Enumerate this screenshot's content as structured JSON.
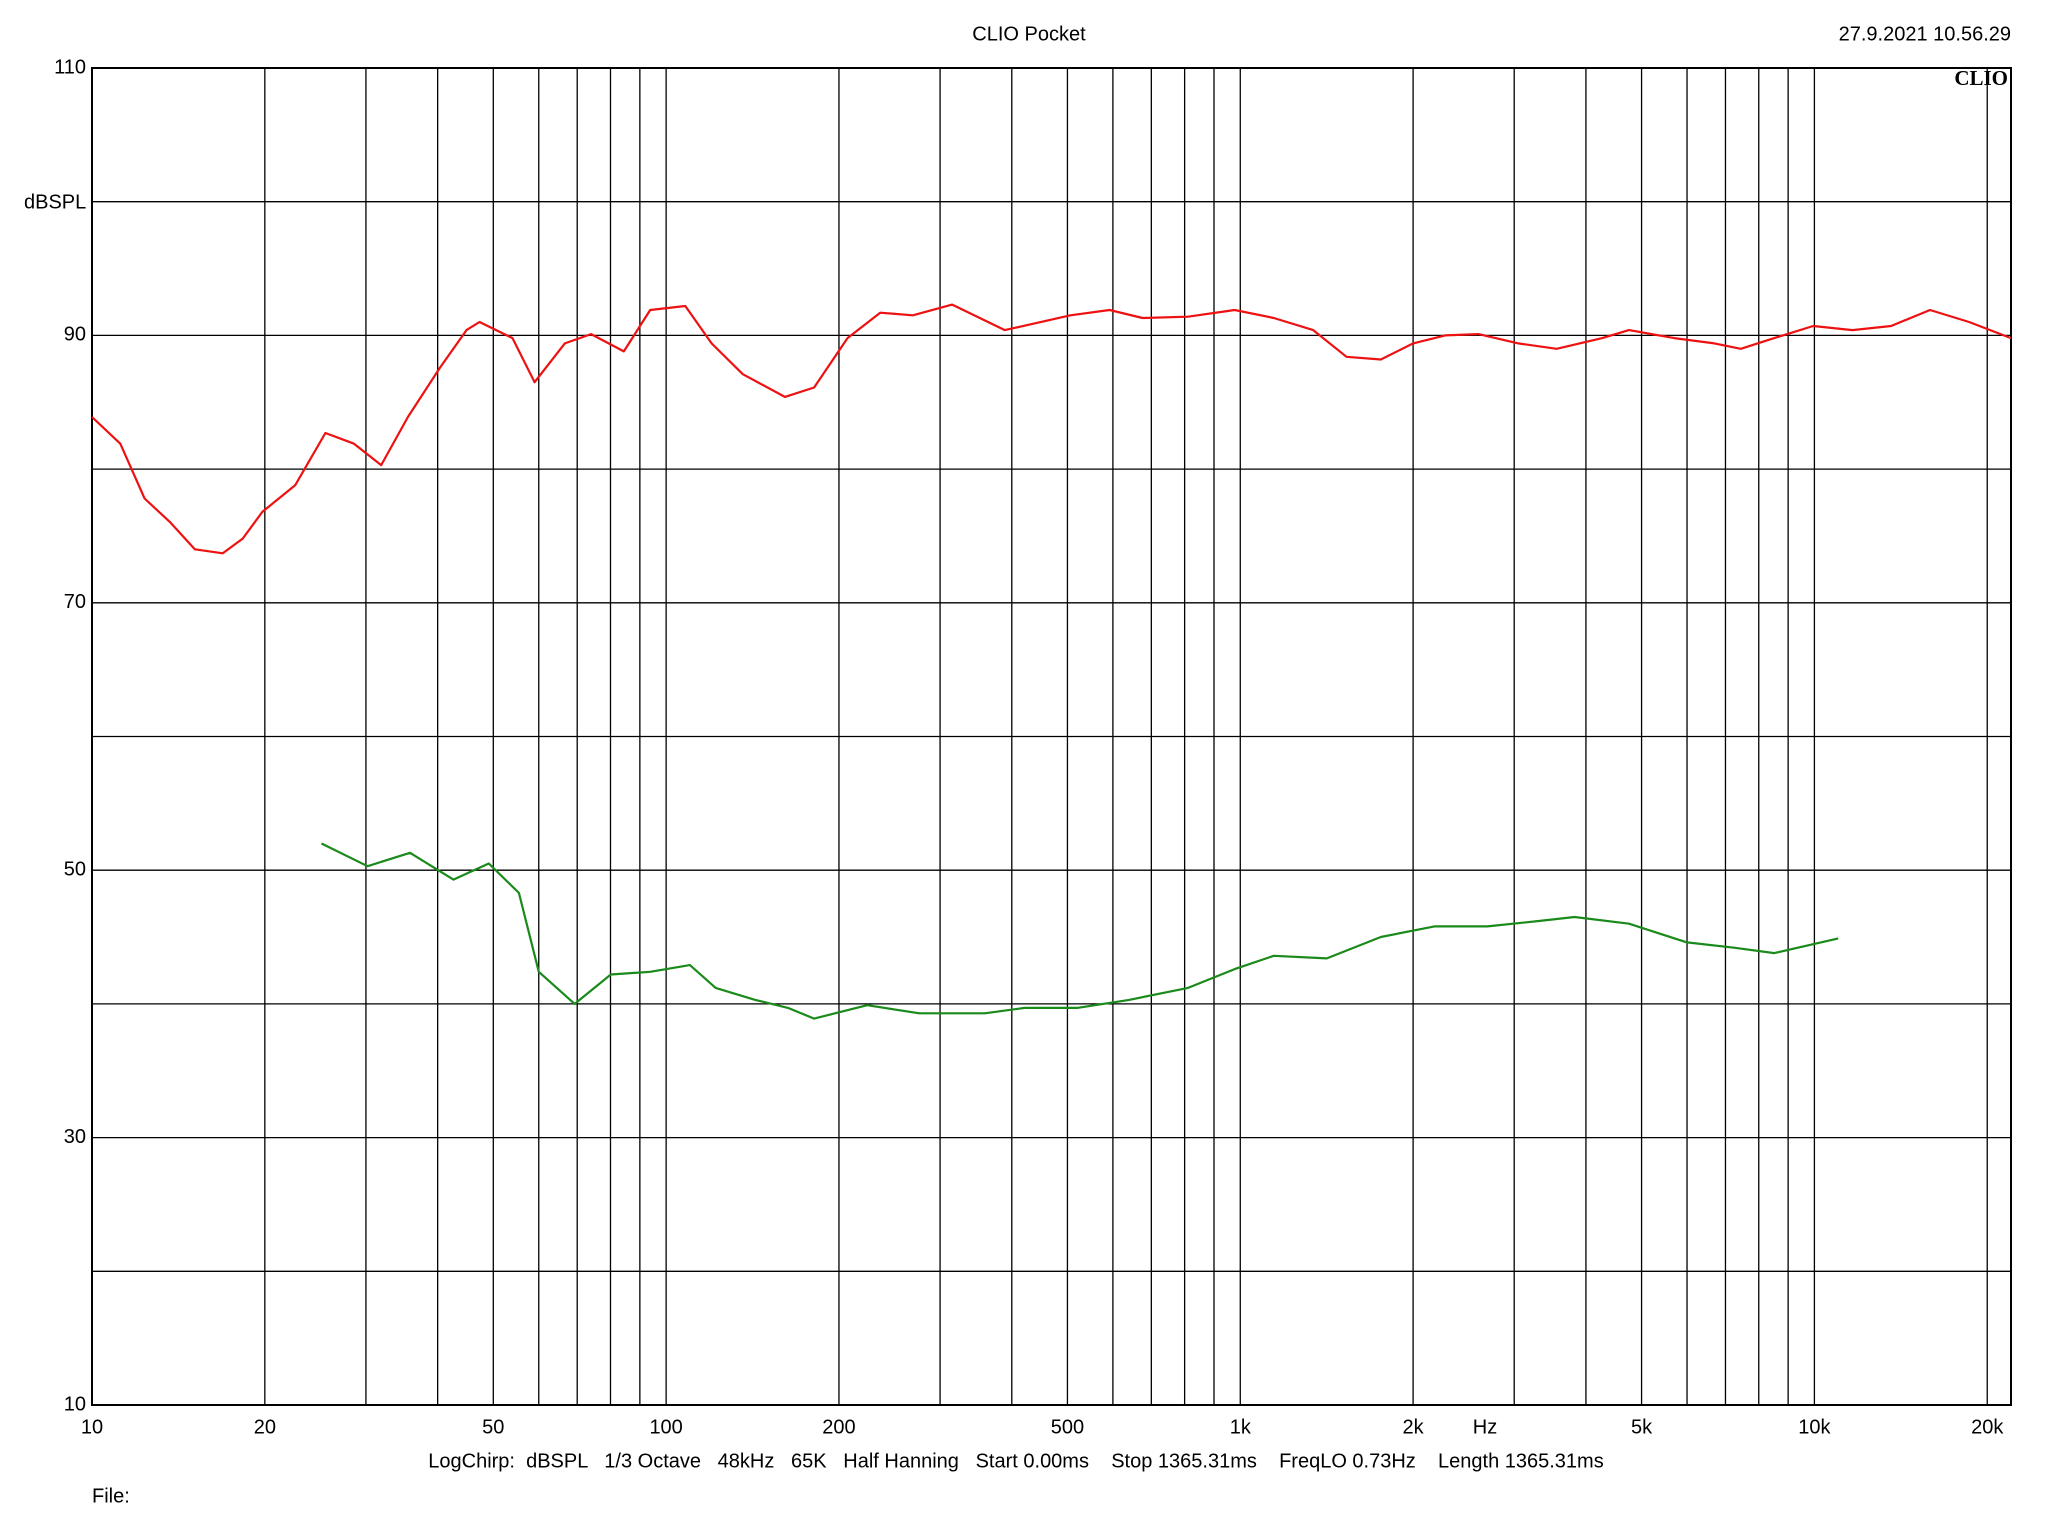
{
  "chart_data": {
    "type": "line",
    "title": "CLIO Pocket",
    "date": "27.9.2021 10.56.29",
    "logo": "CLIO",
    "ylabel": "dBSPL",
    "xlabel": "Hz",
    "footer": "LogChirp:  dBSPL   1/3 Octave   48kHz   65K   Half Hanning   Start 0.00ms    Stop 1365.31ms    FreqLO 0.73Hz    Length 1365.31ms",
    "file": "File:",
    "xscale": "log",
    "xlim": [
      10,
      22000
    ],
    "xticks": [
      10,
      20,
      50,
      100,
      200,
      500,
      {
        "value": 1000,
        "label": "1k"
      },
      {
        "value": 2000,
        "label": "2k"
      },
      {
        "value": 5000,
        "label": "5k"
      },
      {
        "value": 10000,
        "label": "10k"
      },
      {
        "value": 20000,
        "label": "20k"
      }
    ],
    "xminor": [
      30,
      40,
      60,
      70,
      80,
      90,
      300,
      400,
      600,
      700,
      800,
      900,
      3000,
      4000,
      6000,
      7000,
      8000,
      9000
    ],
    "ylim": [
      10,
      110
    ],
    "yticks": [
      10,
      30,
      50,
      70,
      90,
      110
    ],
    "yminor": [
      20,
      40,
      60,
      80,
      100
    ],
    "grid": true,
    "series": [
      {
        "color": "#ee1111",
        "x": [
          10,
          11.2,
          12.35,
          13.7,
          15.1,
          16.9,
          18.3,
          19.8,
          22.6,
          25.5,
          28.6,
          31.9,
          35.5,
          40.4,
          44.9,
          47.3,
          54,
          59,
          66.6,
          74,
          84.4,
          93.8,
          108,
          120,
          136,
          161,
          181,
          207,
          236,
          269,
          315,
          389,
          506,
          592,
          676,
          811,
          978,
          1144,
          1340,
          1531,
          1757,
          2000,
          2274,
          2599,
          3051,
          3557,
          4271,
          4755,
          5700,
          6695,
          7444,
          8514,
          9950,
          11645,
          13600,
          15900,
          18600,
          22000
        ],
        "values": [
          83.9,
          81.9,
          77.8,
          76.0,
          74.0,
          73.7,
          74.8,
          76.8,
          78.8,
          82.7,
          81.9,
          80.3,
          83.9,
          87.6,
          90.4,
          91.0,
          89.8,
          86.5,
          89.4,
          90.1,
          88.8,
          91.9,
          92.2,
          89.4,
          87.1,
          85.4,
          86.1,
          89.8,
          91.7,
          91.5,
          92.3,
          90.4,
          91.5,
          91.9,
          91.3,
          91.4,
          91.9,
          91.3,
          90.4,
          88.4,
          88.2,
          89.4,
          90.0,
          90.1,
          89.4,
          89.0,
          89.8,
          90.4,
          89.8,
          89.4,
          89.0,
          89.8,
          90.7,
          90.4,
          90.7,
          91.9,
          91.0,
          89.8
        ]
      },
      {
        "color": "#1a8a1a",
        "x": [
          25.1,
          30.2,
          35.8,
          42.6,
          49.1,
          55.4,
          60,
          69.3,
          80.1,
          93.8,
          110,
          122,
          143,
          163,
          181,
          224,
          276,
          359,
          421,
          520,
          640,
          811,
          978,
          1144,
          1415,
          1757,
          2178,
          2695,
          3311,
          3822,
          4755,
          6000,
          7243,
          8514,
          11000
        ],
        "values": [
          52.0,
          50.3,
          51.3,
          49.3,
          50.5,
          48.3,
          42.4,
          40.0,
          42.2,
          42.4,
          42.9,
          41.2,
          40.3,
          39.7,
          38.9,
          39.9,
          39.3,
          39.3,
          39.7,
          39.7,
          40.3,
          41.2,
          42.6,
          43.6,
          43.4,
          45.0,
          45.8,
          45.8,
          46.2,
          46.5,
          46.0,
          44.6,
          44.2,
          43.8,
          44.9
        ]
      }
    ]
  }
}
